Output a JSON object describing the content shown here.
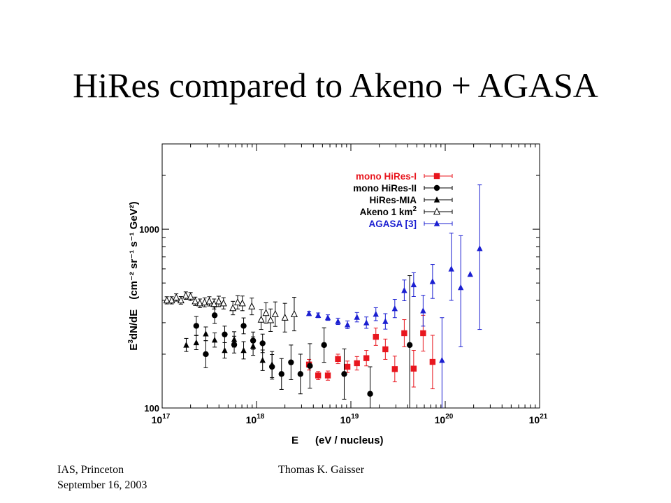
{
  "slide": {
    "title": "HiRes compared to Akeno + AGASA",
    "footer_left_line1": "IAS, Princeton",
    "footer_left_line2": "September 16, 2003",
    "footer_right": "Thomas K. Gaisser"
  },
  "chart_data": {
    "type": "scatter",
    "title": "",
    "xlabel_main": "E",
    "xlabel_unit": "(eV / nucleus)",
    "ylabel_main": "E",
    "ylabel_main_sup": "3",
    "ylabel_main_rest": "dN/dE",
    "ylabel_unit": "(cm⁻² sr⁻¹ s⁻¹ GeV²)",
    "xscale": "log",
    "yscale": "log",
    "xlim": [
      1e+17,
      1e+21
    ],
    "ylim": [
      100,
      3000
    ],
    "x_ticks": [
      {
        "base": "10",
        "exp": "17",
        "value": 1e+17
      },
      {
        "base": "10",
        "exp": "18",
        "value": 1e+18
      },
      {
        "base": "10",
        "exp": "19",
        "value": 1e+19
      },
      {
        "base": "10",
        "exp": "20",
        "value": 1e+20
      },
      {
        "base": "10",
        "exp": "21",
        "value": 1e+21
      }
    ],
    "y_ticks": [
      {
        "label": "100",
        "value": 100
      },
      {
        "label": "1000",
        "value": 1000
      }
    ],
    "legend_position": "top-right",
    "series": [
      {
        "name": "mono HiRes-I",
        "color": "#e8161e",
        "marker": "square-filled",
        "points": [
          {
            "x": 3.6e+18,
            "y": 175,
            "lo": 163,
            "hi": 187
          },
          {
            "x": 4.5e+18,
            "y": 152,
            "lo": 144,
            "hi": 160
          },
          {
            "x": 5.7e+18,
            "y": 152,
            "lo": 143,
            "hi": 161
          },
          {
            "x": 7.3e+18,
            "y": 188,
            "lo": 177,
            "hi": 200
          },
          {
            "x": 9.2e+18,
            "y": 170,
            "lo": 158,
            "hi": 183
          },
          {
            "x": 1.16e+19,
            "y": 178,
            "lo": 163,
            "hi": 194
          },
          {
            "x": 1.46e+19,
            "y": 190,
            "lo": 172,
            "hi": 210
          },
          {
            "x": 1.84e+19,
            "y": 250,
            "lo": 224,
            "hi": 280
          },
          {
            "x": 2.32e+19,
            "y": 213,
            "lo": 187,
            "hi": 243
          },
          {
            "x": 2.92e+19,
            "y": 165,
            "lo": 140,
            "hi": 195
          },
          {
            "x": 3.68e+19,
            "y": 262,
            "lo": 220,
            "hi": 312
          },
          {
            "x": 4.63e+19,
            "y": 166,
            "lo": 131,
            "hi": 210
          },
          {
            "x": 5.83e+19,
            "y": 262,
            "lo": 208,
            "hi": 330
          },
          {
            "x": 7.34e+19,
            "y": 181,
            "lo": 128,
            "hi": 255
          }
        ]
      },
      {
        "name": "mono HiRes-II",
        "color": "#000000",
        "marker": "circle-filled",
        "points": [
          {
            "x": 2.3e+17,
            "y": 288,
            "lo": 255,
            "hi": 325
          },
          {
            "x": 2.9e+17,
            "y": 200,
            "lo": 168,
            "hi": 238
          },
          {
            "x": 3.6e+17,
            "y": 330,
            "lo": 297,
            "hi": 367
          },
          {
            "x": 4.6e+17,
            "y": 258,
            "lo": 232,
            "hi": 287
          },
          {
            "x": 5.8e+17,
            "y": 226,
            "lo": 203,
            "hi": 252
          },
          {
            "x": 7.3e+17,
            "y": 288,
            "lo": 260,
            "hi": 319
          },
          {
            "x": 9.2e+17,
            "y": 238,
            "lo": 213,
            "hi": 266
          },
          {
            "x": 1.16e+18,
            "y": 230,
            "lo": 204,
            "hi": 259
          },
          {
            "x": 1.46e+18,
            "y": 170,
            "lo": 145,
            "hi": 199
          },
          {
            "x": 1.84e+18,
            "y": 155,
            "lo": 127,
            "hi": 189
          },
          {
            "x": 2.32e+18,
            "y": 180,
            "lo": 144,
            "hi": 225
          },
          {
            "x": 2.92e+18,
            "y": 155,
            "lo": 120,
            "hi": 200
          },
          {
            "x": 3.68e+18,
            "y": 172,
            "lo": 129,
            "hi": 229
          },
          {
            "x": 5.2e+18,
            "y": 225,
            "lo": 180,
            "hi": 281
          },
          {
            "x": 8.5e+18,
            "y": 155,
            "lo": 112,
            "hi": 214
          },
          {
            "x": 1.6e+19,
            "y": 120,
            "lo": 85,
            "hi": 170
          },
          {
            "x": 4.2e+19,
            "y": 225,
            "lo": 92,
            "hi": 550
          }
        ]
      },
      {
        "name": "HiRes-MIA",
        "color": "#000000",
        "marker": "triangle-filled",
        "points": [
          {
            "x": 1.8e+17,
            "y": 225,
            "lo": 207,
            "hi": 245
          },
          {
            "x": 2.3e+17,
            "y": 232,
            "lo": 212,
            "hi": 254
          },
          {
            "x": 2.9e+17,
            "y": 260,
            "lo": 238,
            "hi": 284
          },
          {
            "x": 3.6e+17,
            "y": 240,
            "lo": 219,
            "hi": 263
          },
          {
            "x": 4.6e+17,
            "y": 210,
            "lo": 190,
            "hi": 232
          },
          {
            "x": 5.8e+17,
            "y": 242,
            "lo": 219,
            "hi": 267
          },
          {
            "x": 7.3e+17,
            "y": 210,
            "lo": 188,
            "hi": 235
          },
          {
            "x": 9.2e+17,
            "y": 222,
            "lo": 197,
            "hi": 250
          },
          {
            "x": 1.16e+18,
            "y": 185,
            "lo": 162,
            "hi": 211
          },
          {
            "x": 1.46e+18,
            "y": 175,
            "lo": 148,
            "hi": 207
          }
        ]
      },
      {
        "name": "Akeno 1 km",
        "name_sup": "2",
        "color": "#000000",
        "marker": "triangle-open",
        "points": [
          {
            "x": 1.12e+17,
            "y": 400,
            "lo": 382,
            "hi": 419
          },
          {
            "x": 1.26e+17,
            "y": 400,
            "lo": 382,
            "hi": 419
          },
          {
            "x": 1.41e+17,
            "y": 415,
            "lo": 396,
            "hi": 435
          },
          {
            "x": 1.58e+17,
            "y": 400,
            "lo": 381,
            "hi": 420
          },
          {
            "x": 1.78e+17,
            "y": 425,
            "lo": 405,
            "hi": 446
          },
          {
            "x": 2e+17,
            "y": 420,
            "lo": 399,
            "hi": 442
          },
          {
            "x": 2.24e+17,
            "y": 395,
            "lo": 374,
            "hi": 417
          },
          {
            "x": 2.51e+17,
            "y": 385,
            "lo": 364,
            "hi": 407
          },
          {
            "x": 2.82e+17,
            "y": 390,
            "lo": 368,
            "hi": 413
          },
          {
            "x": 3.16e+17,
            "y": 395,
            "lo": 372,
            "hi": 419
          },
          {
            "x": 3.55e+17,
            "y": 382,
            "lo": 358,
            "hi": 407
          },
          {
            "x": 3.98e+17,
            "y": 395,
            "lo": 369,
            "hi": 422
          },
          {
            "x": 4.47e+17,
            "y": 385,
            "lo": 358,
            "hi": 414
          },
          {
            "x": 5.62e+17,
            "y": 362,
            "lo": 332,
            "hi": 395
          },
          {
            "x": 6.31e+17,
            "y": 390,
            "lo": 358,
            "hi": 425
          },
          {
            "x": 7.08e+17,
            "y": 385,
            "lo": 350,
            "hi": 423
          },
          {
            "x": 8.91e+17,
            "y": 370,
            "lo": 332,
            "hi": 412
          },
          {
            "x": 1.12e+18,
            "y": 312,
            "lo": 275,
            "hi": 354
          },
          {
            "x": 1.26e+18,
            "y": 340,
            "lo": 298,
            "hi": 388
          },
          {
            "x": 1.41e+18,
            "y": 310,
            "lo": 268,
            "hi": 358
          },
          {
            "x": 1.58e+18,
            "y": 335,
            "lo": 286,
            "hi": 392
          },
          {
            "x": 2e+18,
            "y": 320,
            "lo": 266,
            "hi": 385
          },
          {
            "x": 2.51e+18,
            "y": 335,
            "lo": 270,
            "hi": 416
          }
        ]
      },
      {
        "name": "AGASA [3]",
        "color": "#1b1fd1",
        "marker": "triangle-filled",
        "points": [
          {
            "x": 3.6e+18,
            "y": 338,
            "lo": 329,
            "hi": 347
          },
          {
            "x": 4.5e+18,
            "y": 330,
            "lo": 320,
            "hi": 340
          },
          {
            "x": 5.7e+18,
            "y": 320,
            "lo": 309,
            "hi": 332
          },
          {
            "x": 7.3e+18,
            "y": 305,
            "lo": 293,
            "hi": 318
          },
          {
            "x": 9.2e+18,
            "y": 292,
            "lo": 278,
            "hi": 307
          },
          {
            "x": 1.16e+19,
            "y": 322,
            "lo": 303,
            "hi": 342
          },
          {
            "x": 1.46e+19,
            "y": 300,
            "lo": 279,
            "hi": 323
          },
          {
            "x": 1.84e+19,
            "y": 335,
            "lo": 308,
            "hi": 364
          },
          {
            "x": 2.32e+19,
            "y": 305,
            "lo": 276,
            "hi": 337
          },
          {
            "x": 2.92e+19,
            "y": 360,
            "lo": 320,
            "hi": 405
          },
          {
            "x": 3.68e+19,
            "y": 455,
            "lo": 398,
            "hi": 520
          },
          {
            "x": 4.63e+19,
            "y": 490,
            "lo": 420,
            "hi": 571
          },
          {
            "x": 5.83e+19,
            "y": 350,
            "lo": 287,
            "hi": 427
          },
          {
            "x": 7.34e+19,
            "y": 510,
            "lo": 410,
            "hi": 635
          },
          {
            "x": 9.24e+19,
            "y": 185,
            "lo": 82,
            "hi": 320
          },
          {
            "x": 1.16e+20,
            "y": 600,
            "lo": 400,
            "hi": 950
          },
          {
            "x": 1.46e+20,
            "y": 472,
            "lo": 220,
            "hi": 920
          },
          {
            "x": 1.84e+20,
            "y": 560,
            "lo": 560,
            "hi": 560
          },
          {
            "x": 2.32e+20,
            "y": 780,
            "lo": 275,
            "hi": 1770
          }
        ]
      }
    ]
  }
}
